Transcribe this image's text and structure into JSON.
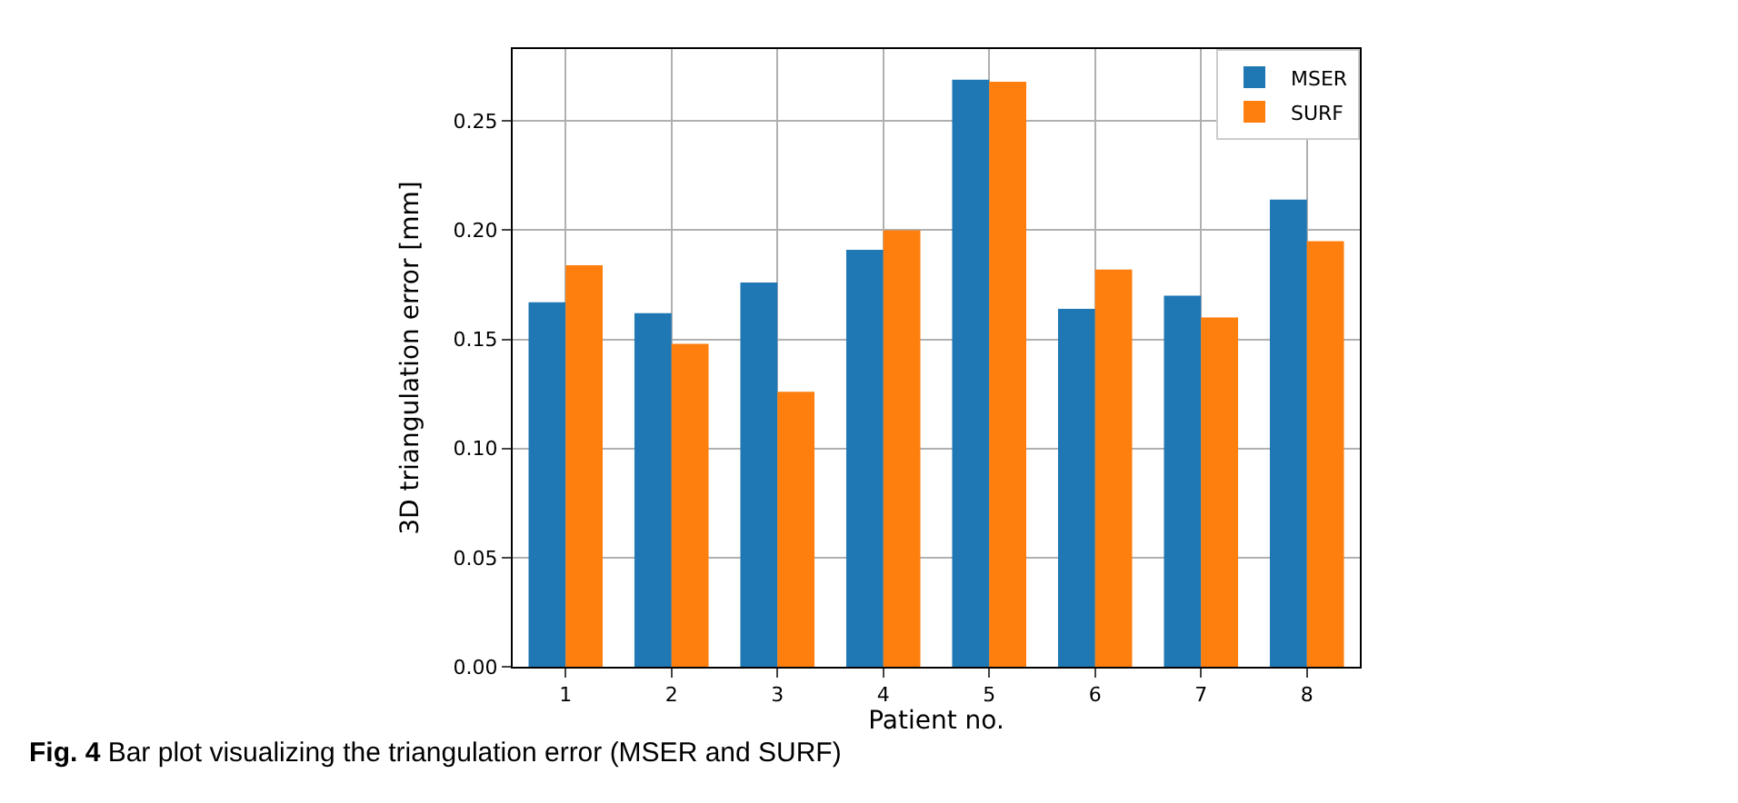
{
  "chart_data": {
    "type": "bar",
    "xlabel": "Patient no.",
    "ylabel": "3D triangulation error [mm]",
    "categories": [
      "1",
      "2",
      "3",
      "4",
      "5",
      "6",
      "7",
      "8"
    ],
    "series": [
      {
        "name": "MSER",
        "color": "#1f77b4",
        "values": [
          0.167,
          0.162,
          0.176,
          0.191,
          0.269,
          0.164,
          0.17,
          0.214
        ]
      },
      {
        "name": "SURF",
        "color": "#ff7f0e",
        "values": [
          0.184,
          0.148,
          0.126,
          0.2,
          0.268,
          0.182,
          0.16,
          0.195
        ]
      }
    ],
    "ylim": [
      0,
      0.283
    ],
    "yticks": [
      {
        "value": 0,
        "label": "0.00"
      },
      {
        "value": 0.05,
        "label": "0.05"
      },
      {
        "value": 0.1,
        "label": "0.10"
      },
      {
        "value": 0.15,
        "label": "0.15"
      },
      {
        "value": 0.2,
        "label": "0.20"
      },
      {
        "value": 0.25,
        "label": "0.25"
      }
    ],
    "grid": true,
    "legend": "top right",
    "annotations": [
      "**Fig. 4** Bar plot visualizing the triangulation error (MSER and SURF)"
    ]
  }
}
